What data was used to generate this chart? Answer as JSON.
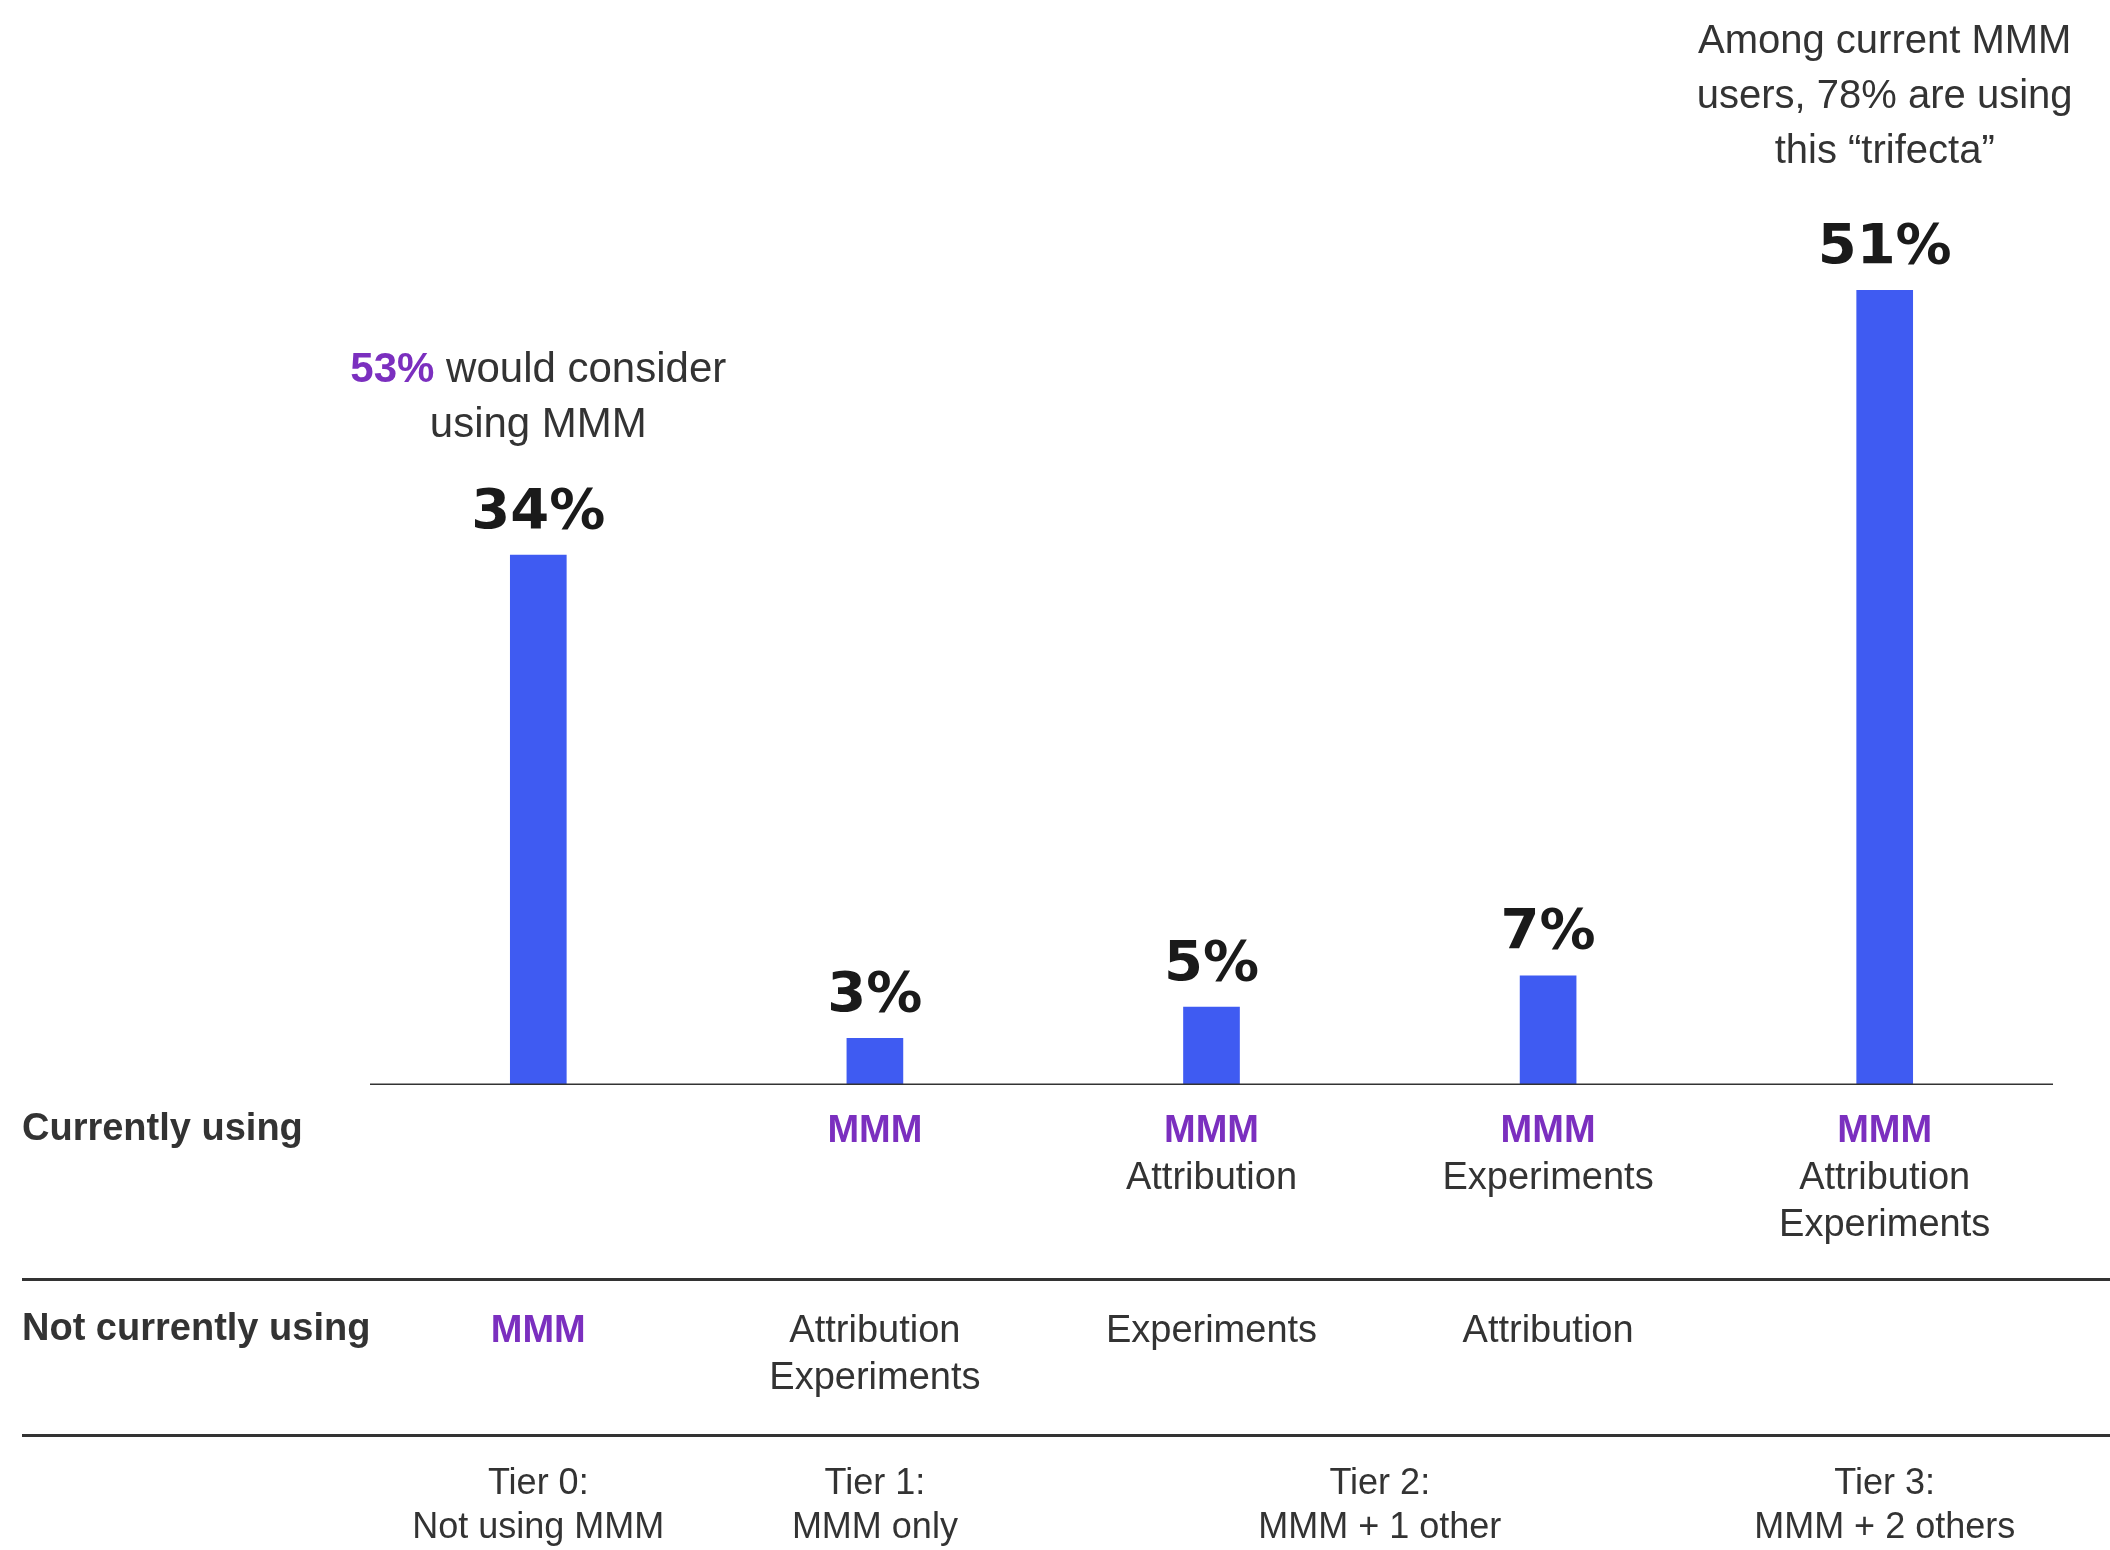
{
  "chart_data": {
    "type": "bar",
    "categories": [
      null,
      "MMM",
      "MMM\nAttribution",
      "MMM\nExperiments",
      "MMM\nAttribution\nExperiments"
    ],
    "values": [
      34,
      3,
      5,
      7,
      51
    ],
    "color": "#3f5bf2",
    "value_labels": [
      "34%",
      "3%",
      "5%",
      "7%",
      "51%"
    ],
    "annotations": [
      "53% would consider\nusing MMM",
      "Among current MMM\nusers, 78% are using\nthis “trifecta”",
      "Currently using",
      "Not currently using",
      "MMM",
      "Attribution\nExperiments",
      "Experiments",
      "Attribution",
      "Tier 0:\nNot using MMM",
      "Tier 1:\nMMM only",
      "Tier 2:\nMMM + 1 other",
      "Tier 3:\nMMM + 2 others"
    ]
  }
}
